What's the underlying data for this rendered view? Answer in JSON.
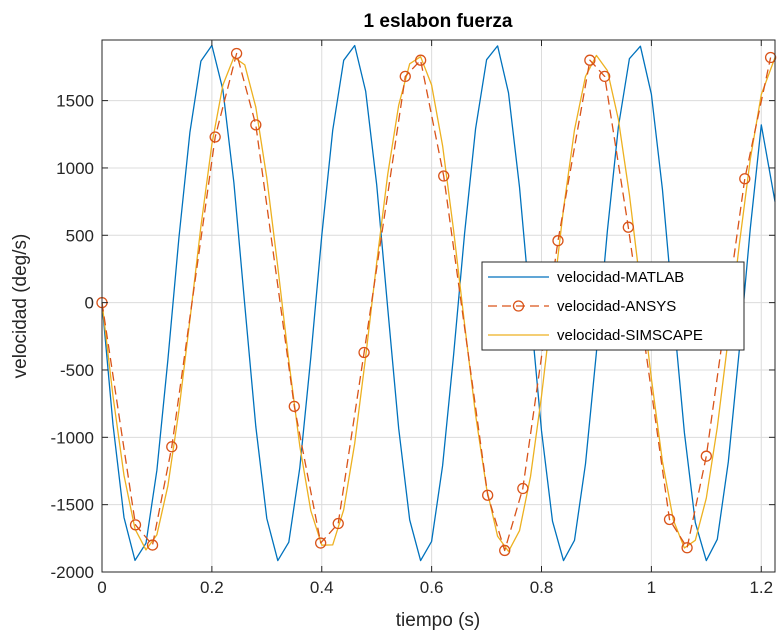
{
  "chart_data": {
    "type": "line",
    "title": "1 eslabon fuerza",
    "xlabel": "tiempo (s)",
    "ylabel": "velocidad (deg/s)",
    "xlim": [
      0,
      1.225
    ],
    "ylim": [
      -2000,
      1950
    ],
    "xticks": [
      0,
      0.2,
      0.4,
      0.6,
      0.8,
      1,
      1.2
    ],
    "xtick_labels": [
      "0",
      "0.2",
      "0.4",
      "0.6",
      "0.8",
      "1",
      "1.2"
    ],
    "yticks": [
      -2000,
      -1500,
      -1000,
      -500,
      0,
      500,
      1000,
      1500
    ],
    "ytick_labels": [
      "-2000",
      "-1500",
      "-1000",
      "-500",
      "0",
      "500",
      "1000",
      "1500"
    ],
    "grid": true,
    "legend_position": "center-right",
    "series": [
      {
        "name": "velocidad-MATLAB",
        "color": "#0072BD",
        "style": "solid",
        "marker": "none",
        "x": [
          0,
          0.02,
          0.04,
          0.06,
          0.08,
          0.1,
          0.12,
          0.14,
          0.16,
          0.18,
          0.2,
          0.22,
          0.24,
          0.26,
          0.28,
          0.3,
          0.32,
          0.34,
          0.36,
          0.38,
          0.4,
          0.42,
          0.44,
          0.46,
          0.48,
          0.5,
          0.52,
          0.54,
          0.56,
          0.58,
          0.6,
          0.62,
          0.64,
          0.66,
          0.68,
          0.7,
          0.72,
          0.74,
          0.76,
          0.78,
          0.8,
          0.82,
          0.84,
          0.86,
          0.88,
          0.9,
          0.92,
          0.94,
          0.96,
          0.98,
          1.0,
          1.02,
          1.04,
          1.06,
          1.08,
          1.1,
          1.12,
          1.14,
          1.16,
          1.18,
          1.2,
          1.225
        ],
        "y": [
          0,
          -906,
          -1595,
          -1914,
          -1786,
          -1244,
          -424,
          480,
          1264,
          1793,
          1910,
          1580,
          890,
          -20,
          -920,
          -1603,
          -1915,
          -1779,
          -1226,
          -407,
          500,
          1279,
          1799,
          1909,
          1568,
          875,
          -39,
          -935,
          -1613,
          -1915,
          -1773,
          -1211,
          -388,
          515,
          1292,
          1804,
          1906,
          1558,
          858,
          -57,
          -951,
          -1623,
          -1915,
          -1765,
          -1197,
          -371,
          534,
          1306,
          1811,
          1904,
          1547,
          843,
          -77,
          -966,
          -1633,
          -1915,
          -1757,
          -1183,
          -353,
          551,
          1320,
          750
        ]
      },
      {
        "name": "velocidad-ANSYS",
        "color": "#D95319",
        "style": "dashed",
        "marker": "circle",
        "x": [
          0,
          0.061,
          0.092,
          0.127,
          0.206,
          0.245,
          0.28,
          0.35,
          0.398,
          0.43,
          0.477,
          0.552,
          0.58,
          0.622,
          0.702,
          0.733,
          0.766,
          0.83,
          0.888,
          0.915,
          0.958,
          1.033,
          1.065,
          1.1,
          1.17,
          1.217
        ],
        "y": [
          0,
          -1650,
          -1800,
          -1070,
          1230,
          1850,
          1320,
          -770,
          -1785,
          -1640,
          -370,
          1680,
          1800,
          940,
          -1430,
          -1840,
          -1380,
          460,
          1800,
          1680,
          560,
          -1610,
          -1820,
          -1140,
          920,
          1820
        ]
      },
      {
        "name": "velocidad-SIMSCAPE",
        "color": "#EDB120",
        "style": "solid",
        "marker": "none",
        "x": [
          0,
          0.02,
          0.04,
          0.06,
          0.08,
          0.1,
          0.12,
          0.14,
          0.16,
          0.18,
          0.2,
          0.22,
          0.24,
          0.26,
          0.28,
          0.3,
          0.32,
          0.34,
          0.36,
          0.38,
          0.4,
          0.42,
          0.44,
          0.46,
          0.48,
          0.5,
          0.52,
          0.54,
          0.56,
          0.58,
          0.6,
          0.62,
          0.64,
          0.66,
          0.68,
          0.7,
          0.72,
          0.74,
          0.76,
          0.78,
          0.8,
          0.82,
          0.84,
          0.86,
          0.88,
          0.9,
          0.92,
          0.94,
          0.96,
          0.98,
          1.0,
          1.02,
          1.04,
          1.06,
          1.08,
          1.1,
          1.12,
          1.14,
          1.16,
          1.18,
          1.2,
          1.225
        ],
        "y": [
          0,
          -695,
          -1283,
          -1680,
          -1836,
          -1723,
          -1360,
          -802,
          -128,
          565,
          1177,
          1616,
          1822,
          1765,
          1452,
          926,
          265,
          -431,
          -1065,
          -1545,
          -1801,
          -1799,
          -1538,
          -1046,
          -400,
          297,
          951,
          1466,
          1773,
          1826,
          1616,
          1165,
          536,
          -161,
          -834,
          -1379,
          -1735,
          -1847,
          -1693,
          -1292,
          -695,
          0,
          695,
          1283,
          1680,
          1836,
          1723,
          1360,
          802,
          128,
          -565,
          -1177,
          -1616,
          -1822,
          -1765,
          -1452,
          -926,
          -265,
          431,
          1065,
          1545,
          1820
        ]
      }
    ]
  }
}
